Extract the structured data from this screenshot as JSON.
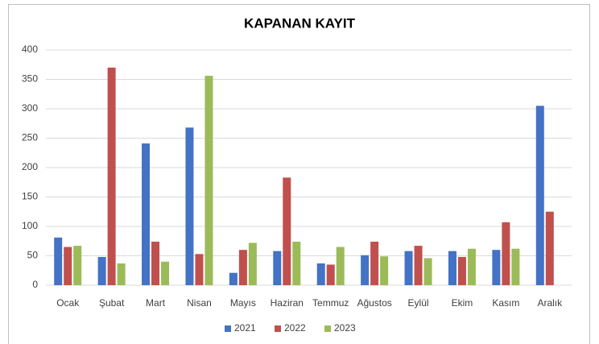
{
  "chart_data": {
    "type": "bar",
    "title": "KAPANAN KAYIT",
    "categories": [
      "Ocak",
      "Şubat",
      "Mart",
      "Nisan",
      "Mayıs",
      "Haziran",
      "Temmuz",
      "Ağustos",
      "Eylül",
      "Ekim",
      "Kasım",
      "Aralık"
    ],
    "series": [
      {
        "name": "2021",
        "color": "#4472c4",
        "values": [
          81,
          48,
          241,
          268,
          21,
          58,
          37,
          51,
          58,
          58,
          60,
          305
        ]
      },
      {
        "name": "2022",
        "color": "#c0504d",
        "values": [
          65,
          370,
          74,
          53,
          60,
          183,
          35,
          74,
          67,
          48,
          107,
          125
        ]
      },
      {
        "name": "2023",
        "color": "#9bbb59",
        "values": [
          67,
          37,
          40,
          356,
          72,
          74,
          65,
          49,
          46,
          62,
          62,
          null
        ]
      }
    ],
    "ylim": [
      0,
      400
    ],
    "yticks": [
      0,
      50,
      100,
      150,
      200,
      250,
      300,
      350,
      400
    ],
    "grid": true,
    "legend": "bottom"
  }
}
